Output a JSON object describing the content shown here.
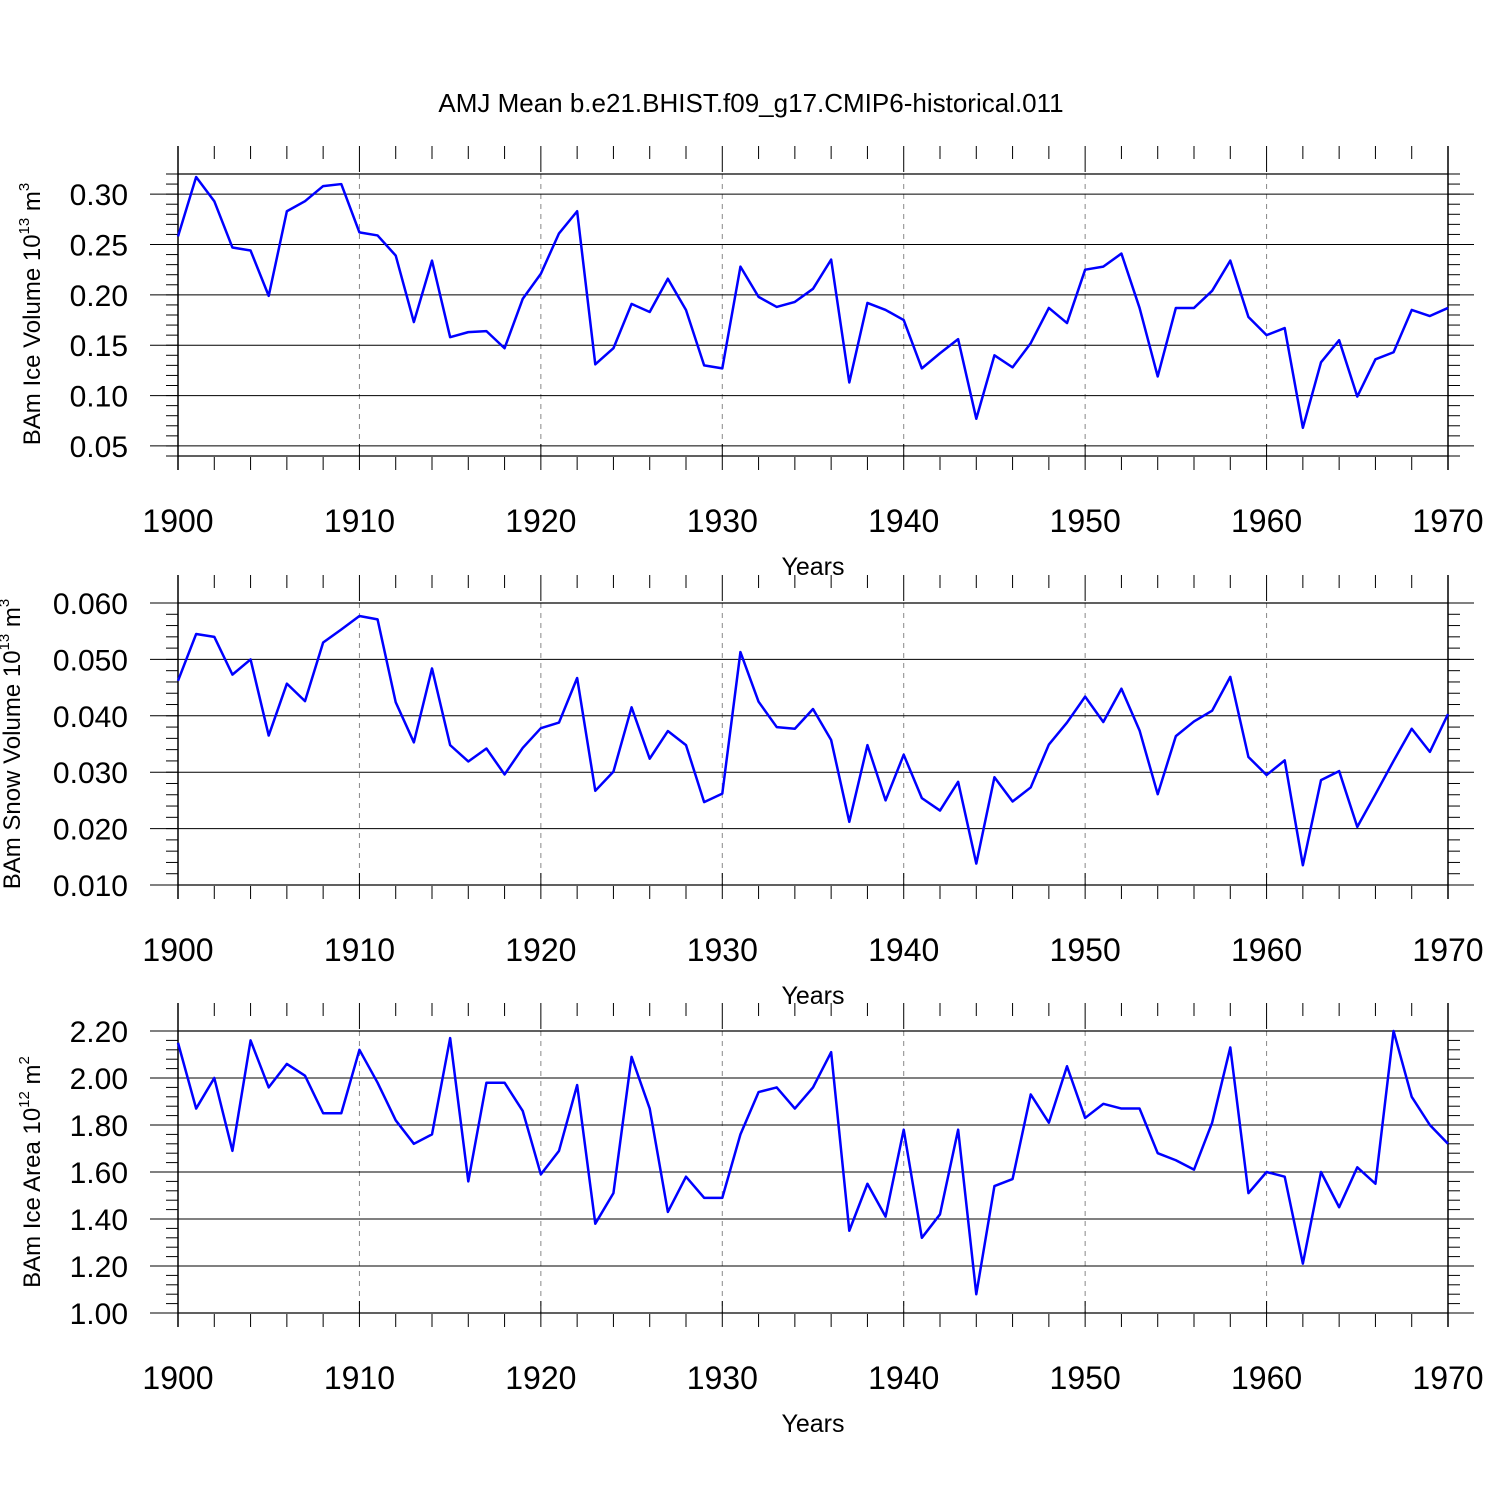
{
  "title": "AMJ Mean b.e21.BHIST.f09_g17.CMIP6-historical.011",
  "line_color": "#0000ff",
  "grid_color": "#888888",
  "chart_data": [
    {
      "type": "line",
      "title": "",
      "ylabel_main": "BAm Ice Volume 10",
      "ylabel_exp": "13",
      "ylabel_unit": " m",
      "ylabel_unit_exp": "3",
      "xlabel": "Years",
      "xlim": [
        1900,
        1970
      ],
      "ylim": [
        0.04,
        0.32
      ],
      "grid": "vertical dashed at decades",
      "xticks": [
        1900,
        1910,
        1920,
        1930,
        1940,
        1950,
        1960,
        1970
      ],
      "xtick_labels": [
        "1900",
        "1910",
        "1920",
        "1930",
        "1940",
        "1950",
        "1960",
        "1970"
      ],
      "yticks": [
        0.05,
        0.1,
        0.15,
        0.2,
        0.25,
        0.3
      ],
      "ytick_labels": [
        "0.05",
        "0.10",
        "0.15",
        "0.20",
        "0.25",
        "0.30"
      ],
      "yminor_step": 0.01,
      "series": [
        {
          "x_start": 1900,
          "values": [
            0.258,
            0.317,
            0.293,
            0.247,
            0.244,
            0.199,
            0.283,
            0.293,
            0.308,
            0.31,
            0.262,
            0.259,
            0.239,
            0.173,
            0.234,
            0.158,
            0.163,
            0.164,
            0.147,
            0.196,
            0.221,
            0.261,
            0.283,
            0.131,
            0.147,
            0.191,
            0.183,
            0.216,
            0.185,
            0.13,
            0.127,
            0.228,
            0.198,
            0.188,
            0.193,
            0.206,
            0.235,
            0.113,
            0.192,
            0.185,
            0.175,
            0.127,
            0.142,
            0.156,
            0.077,
            0.14,
            0.128,
            0.152,
            0.187,
            0.172,
            0.225,
            0.228,
            0.241,
            0.187,
            0.119,
            0.187,
            0.187,
            0.204,
            0.234,
            0.178,
            0.16,
            0.167,
            0.068,
            0.133,
            0.155,
            0.099,
            0.136,
            0.143,
            0.185,
            0.179,
            0.187
          ]
        }
      ]
    },
    {
      "type": "line",
      "title": "",
      "ylabel_main": "BAm Snow Volume 10",
      "ylabel_exp": "13",
      "ylabel_unit": " m",
      "ylabel_unit_exp": "3",
      "xlabel": "Years",
      "xlim": [
        1900,
        1970
      ],
      "ylim": [
        0.01,
        0.06
      ],
      "grid": "vertical dashed at decades",
      "xticks": [
        1900,
        1910,
        1920,
        1930,
        1940,
        1950,
        1960,
        1970
      ],
      "xtick_labels": [
        "1900",
        "1910",
        "1920",
        "1930",
        "1940",
        "1950",
        "1960",
        "1970"
      ],
      "yticks": [
        0.01,
        0.02,
        0.03,
        0.04,
        0.05,
        0.06
      ],
      "ytick_labels": [
        "0.010",
        "0.020",
        "0.030",
        "0.040",
        "0.050",
        "0.060"
      ],
      "yminor_step": 0.002,
      "series": [
        {
          "x_start": 1900,
          "values": [
            0.0462,
            0.0545,
            0.054,
            0.0473,
            0.05,
            0.0365,
            0.0457,
            0.0426,
            0.053,
            0.0553,
            0.0577,
            0.0571,
            0.0424,
            0.0353,
            0.0484,
            0.0348,
            0.0319,
            0.0342,
            0.0296,
            0.0343,
            0.0378,
            0.0388,
            0.0467,
            0.0267,
            0.0301,
            0.0415,
            0.0324,
            0.0373,
            0.0348,
            0.0247,
            0.0262,
            0.0513,
            0.0425,
            0.038,
            0.0377,
            0.0412,
            0.0357,
            0.0212,
            0.0348,
            0.025,
            0.0331,
            0.0254,
            0.0232,
            0.0283,
            0.0138,
            0.0291,
            0.0248,
            0.0273,
            0.0349,
            0.0388,
            0.0434,
            0.0389,
            0.0448,
            0.0374,
            0.0261,
            0.0364,
            0.039,
            0.0409,
            0.0469,
            0.0327,
            0.0295,
            0.0321,
            0.0135,
            0.0286,
            0.0302,
            0.0203,
            0.0261,
            0.032,
            0.0377,
            0.0336,
            0.0403
          ]
        }
      ]
    },
    {
      "type": "line",
      "title": "",
      "ylabel_main": "BAm Ice Area 10",
      "ylabel_exp": "12",
      "ylabel_unit": " m",
      "ylabel_unit_exp": "2",
      "xlabel": "Years",
      "xlim": [
        1900,
        1970
      ],
      "ylim": [
        1.0,
        2.2
      ],
      "grid": "vertical dashed at decades",
      "xticks": [
        1900,
        1910,
        1920,
        1930,
        1940,
        1950,
        1960,
        1970
      ],
      "xtick_labels": [
        "1900",
        "1910",
        "1920",
        "1930",
        "1940",
        "1950",
        "1960",
        "1970"
      ],
      "yticks": [
        1.0,
        1.2,
        1.4,
        1.6,
        1.8,
        2.0,
        2.2
      ],
      "ytick_labels": [
        "1.00",
        "1.20",
        "1.40",
        "1.60",
        "1.80",
        "2.00",
        "2.20"
      ],
      "yminor_step": 0.04,
      "series": [
        {
          "x_start": 1900,
          "values": [
            2.15,
            1.87,
            2.0,
            1.69,
            2.16,
            1.96,
            2.06,
            2.01,
            1.85,
            1.85,
            2.12,
            1.98,
            1.82,
            1.72,
            1.76,
            2.17,
            1.56,
            1.98,
            1.98,
            1.86,
            1.59,
            1.69,
            1.97,
            1.38,
            1.51,
            2.09,
            1.87,
            1.43,
            1.58,
            1.49,
            1.49,
            1.76,
            1.94,
            1.96,
            1.87,
            1.96,
            2.11,
            1.35,
            1.55,
            1.41,
            1.78,
            1.32,
            1.42,
            1.78,
            1.08,
            1.54,
            1.57,
            1.93,
            1.81,
            2.05,
            1.83,
            1.89,
            1.87,
            1.87,
            1.68,
            1.65,
            1.61,
            1.81,
            2.13,
            1.51,
            1.6,
            1.58,
            1.21,
            1.6,
            1.45,
            1.62,
            1.55,
            2.2,
            1.92,
            1.8,
            1.72
          ]
        }
      ]
    }
  ]
}
